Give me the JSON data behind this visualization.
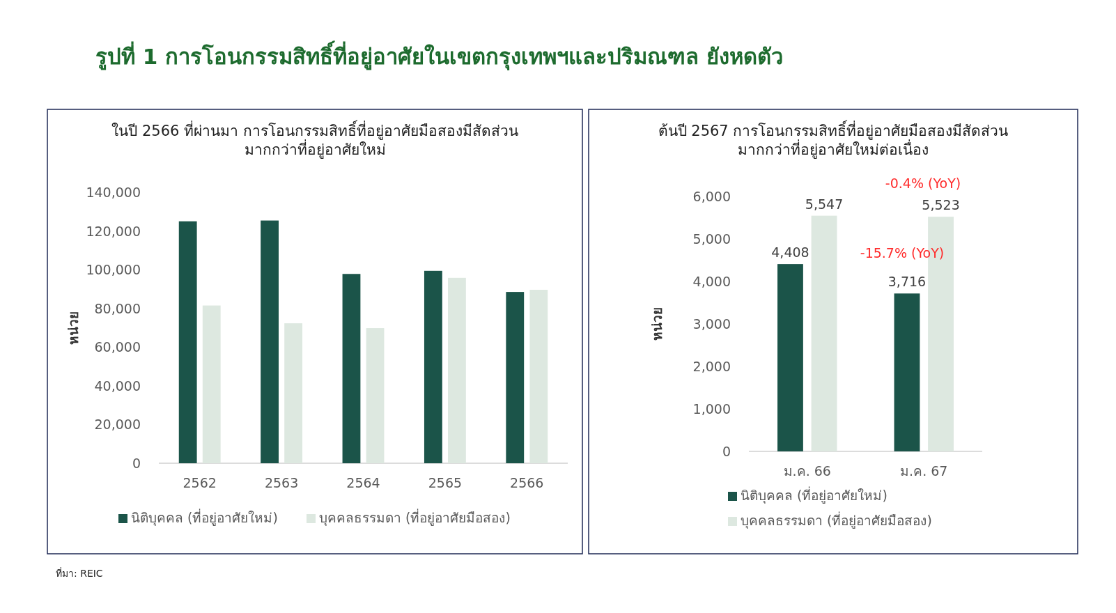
{
  "chart_data": [
    {
      "type": "bar",
      "title": "ในปี 2566 ที่ผ่านมา การโอนกรรมสิทธิ์ที่อยู่อาศัยมือสองมีสัดส่วน\nมากกว่าที่อยู่อาศัยใหม่",
      "ylabel": "หน่วย",
      "categories": [
        "2562",
        "2563",
        "2564",
        "2565",
        "2566"
      ],
      "series": [
        {
          "name": "นิติบุคคล (ที่อยู่อาศัยใหม่)",
          "color": "#1b5449",
          "values": [
            125000,
            125400,
            97800,
            99400,
            88500
          ]
        },
        {
          "name": "บุคคลธรรมดา (ที่อยู่อาศัยมือสอง)",
          "color": "#dde8e0",
          "values": [
            81500,
            72300,
            69800,
            95800,
            89600
          ]
        }
      ],
      "ylim": [
        0,
        140000
      ],
      "yticks": [
        {
          "value": 0,
          "label": "0"
        },
        {
          "value": 20000,
          "label": "20,000"
        },
        {
          "value": 40000,
          "label": "40,000"
        },
        {
          "value": 60000,
          "label": "60,000"
        },
        {
          "value": 80000,
          "label": "80,000"
        },
        {
          "value": 100000,
          "label": "100,000"
        },
        {
          "value": 120000,
          "label": "120,000"
        },
        {
          "value": 140000,
          "label": "140,000"
        }
      ],
      "grid": false,
      "legend": "bottom"
    },
    {
      "type": "bar",
      "title": "ต้นปี 2567 การโอนกรรมสิทธิ์ที่อยู่อาศัยมือสองมีสัดส่วน\nมากกว่าที่อยู่อาศัยใหม่ต่อเนื่อง",
      "ylabel": "หน่วย",
      "categories": [
        "ม.ค. 66",
        "ม.ค. 67"
      ],
      "series": [
        {
          "name": "นิติบุคคล (ที่อยู่อาศัยใหม่)",
          "color": "#1b5449",
          "values": [
            4408,
            3716
          ],
          "value_labels": [
            "4,408",
            "3,716"
          ]
        },
        {
          "name": "บุคคลธรรมดา (ที่อยู่อาศัยมือสอง)",
          "color": "#dde8e0",
          "values": [
            5547,
            5523
          ],
          "value_labels": [
            "5,547",
            "5,523"
          ]
        }
      ],
      "ylim": [
        0,
        6000
      ],
      "yticks": [
        {
          "value": 0,
          "label": "0"
        },
        {
          "value": 1000,
          "label": "1,000"
        },
        {
          "value": 2000,
          "label": "2,000"
        },
        {
          "value": 3000,
          "label": "3,000"
        },
        {
          "value": 4000,
          "label": "4,000"
        },
        {
          "value": 5000,
          "label": "5,000"
        },
        {
          "value": 6000,
          "label": "6,000"
        }
      ],
      "grid": false,
      "legend": "bottom",
      "annotations": [
        "-0.4% (YoY)",
        "-15.7% (YoY)"
      ]
    },
    {
      "type": "other",
      "title": "รูปที่ 1 การโอนกรรมสิทธิ์ที่อยู่อาศัยในเขตกรุงเทพฯและปริมณฑล ยังหดตัว",
      "annotations": [
        "ที่มา: REIC"
      ]
    }
  ]
}
